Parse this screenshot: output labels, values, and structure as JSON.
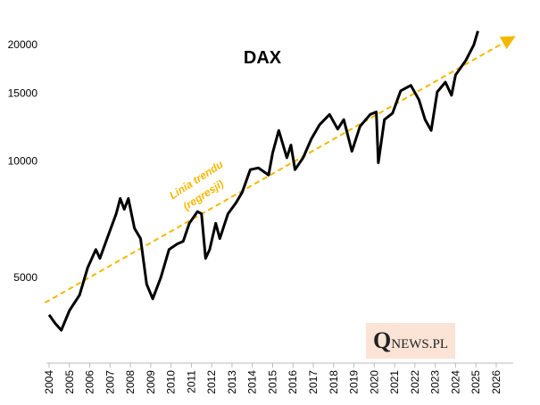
{
  "chart_data": {
    "type": "line",
    "title": "DAX",
    "log_scale": true,
    "grid": false,
    "xlim": [
      2003.9,
      2026.9
    ],
    "ylim": [
      3000,
      22500
    ],
    "xticks": [
      2004,
      2005,
      2006,
      2007,
      2008,
      2009,
      2010,
      2011,
      2012,
      2013,
      2014,
      2015,
      2016,
      2017,
      2018,
      2019,
      2020,
      2021,
      2022,
      2023,
      2024,
      2025,
      2026
    ],
    "yticks": [
      5000,
      10000,
      15000,
      20000
    ],
    "x": [
      2004.0,
      2004.3,
      2004.6,
      2005.0,
      2005.5,
      2005.9,
      2006.3,
      2006.5,
      2006.9,
      2007.3,
      2007.5,
      2007.7,
      2007.9,
      2008.2,
      2008.5,
      2008.8,
      2009.1,
      2009.5,
      2009.9,
      2010.3,
      2010.6,
      2010.9,
      2011.3,
      2011.5,
      2011.7,
      2011.9,
      2012.2,
      2012.4,
      2012.8,
      2013.2,
      2013.5,
      2013.9,
      2014.3,
      2014.8,
      2015.0,
      2015.3,
      2015.7,
      2015.9,
      2016.1,
      2016.5,
      2016.9,
      2017.3,
      2017.8,
      2018.2,
      2018.5,
      2018.9,
      2019.3,
      2019.8,
      2020.1,
      2020.2,
      2020.5,
      2020.9,
      2021.3,
      2021.8,
      2022.2,
      2022.5,
      2022.8,
      2023.1,
      2023.5,
      2023.8,
      2024.0,
      2024.5,
      2024.9,
      2025.1
    ],
    "series": [
      {
        "name": "DAX",
        "color": "#000000",
        "values": [
          4000,
          3800,
          3650,
          4100,
          4500,
          5300,
          5900,
          5600,
          6400,
          7300,
          8000,
          7500,
          8000,
          6700,
          6300,
          4800,
          4400,
          5000,
          5900,
          6100,
          6200,
          6900,
          7400,
          7300,
          5600,
          5900,
          6900,
          6300,
          7300,
          7800,
          8300,
          9500,
          9600,
          9200,
          10500,
          12000,
          10200,
          11000,
          9500,
          10200,
          11400,
          12400,
          13200,
          12100,
          12800,
          10600,
          12300,
          13200,
          13400,
          9900,
          12800,
          13300,
          15200,
          15700,
          14400,
          12800,
          12000,
          15100,
          16000,
          14800,
          16700,
          18200,
          20000,
          21700
        ]
      }
    ],
    "trend": {
      "name": "Linia trendu (regresji)",
      "color": "#f5b800",
      "x": [
        2003.8,
        2026.8
      ],
      "values": [
        4300,
        20850
      ]
    },
    "annotations": [
      "Linia trendu",
      "(regresji)"
    ],
    "logo": "QNEWS.PL"
  }
}
